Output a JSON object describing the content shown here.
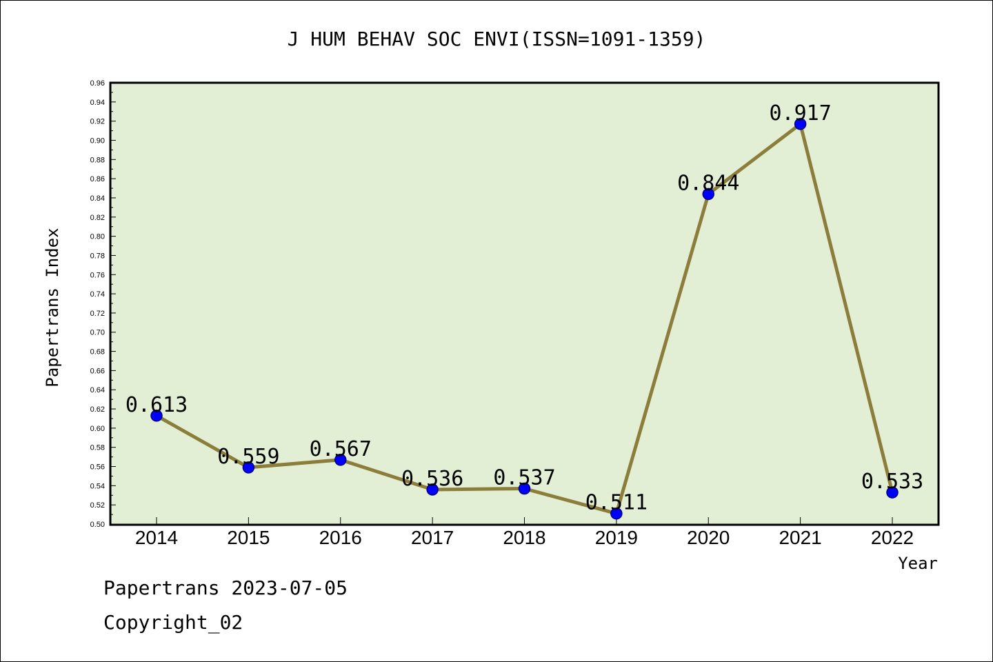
{
  "chart_data": {
    "type": "line",
    "title": "J HUM BEHAV SOC ENVI(ISSN=1091-1359)",
    "xlabel": "Year",
    "ylabel": "Papertrans Index",
    "categories": [
      "2014",
      "2015",
      "2016",
      "2017",
      "2018",
      "2019",
      "2020",
      "2021",
      "2022"
    ],
    "values": [
      0.613,
      0.559,
      0.567,
      0.536,
      0.537,
      0.511,
      0.844,
      0.917,
      0.533
    ],
    "data_labels": [
      "0.613",
      "0.559",
      "0.567",
      "0.536",
      "0.537",
      "0.511",
      "0.844",
      "0.917",
      "0.533"
    ],
    "ylim": [
      0.5,
      0.96
    ],
    "ytick_step": 0.02,
    "yticks": [
      "0.50",
      "0.52",
      "0.54",
      "0.56",
      "0.58",
      "0.60",
      "0.62",
      "0.64",
      "0.66",
      "0.68",
      "0.70",
      "0.72",
      "0.74",
      "0.76",
      "0.78",
      "0.80",
      "0.82",
      "0.84",
      "0.86",
      "0.88",
      "0.90",
      "0.92",
      "0.94",
      "0.96"
    ],
    "grid": false,
    "colors": {
      "plot_background": "#e2efd5",
      "line": "#8b7d3a",
      "marker": "#0000ff"
    }
  },
  "footer": {
    "date_text": "Papertrans 2023-07-05",
    "copyright_text": "Copyright_02"
  }
}
